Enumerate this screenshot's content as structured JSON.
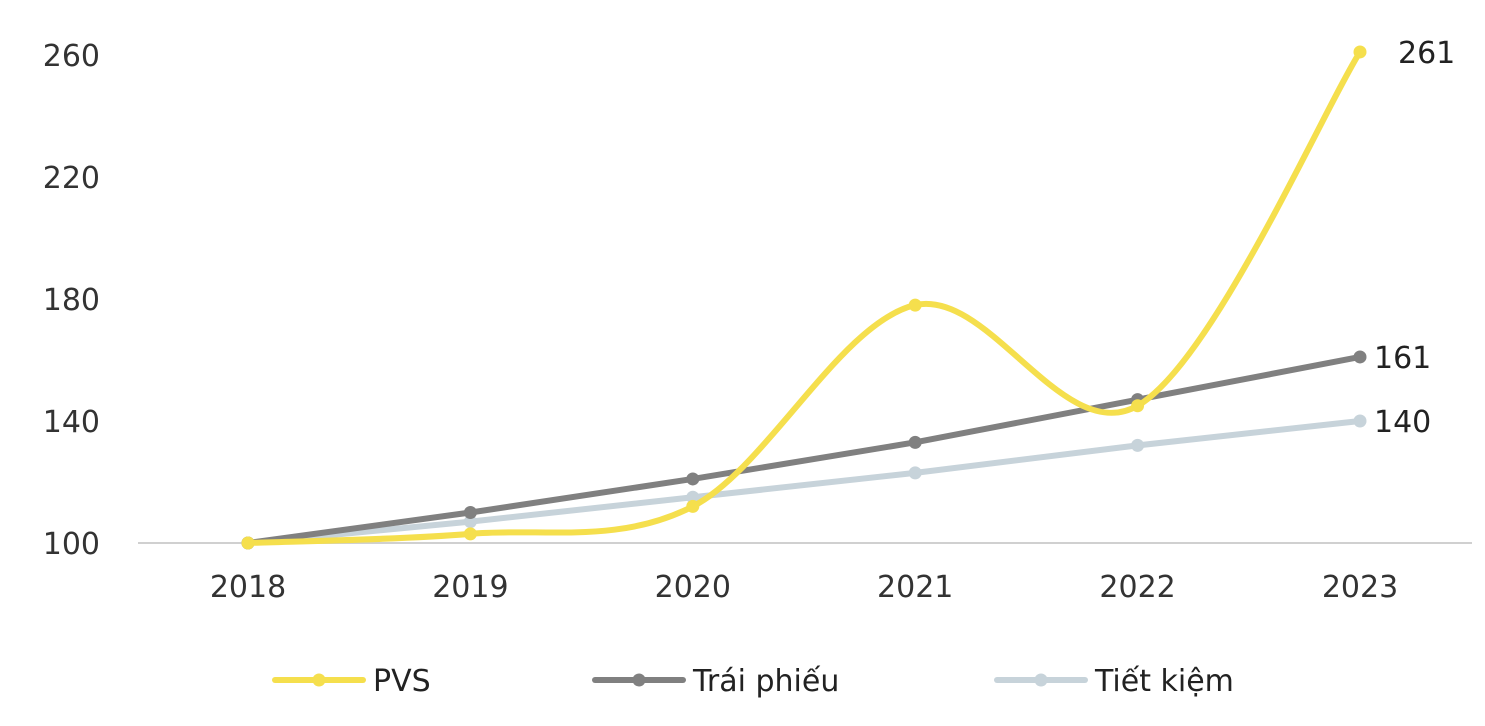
{
  "chart_data": {
    "type": "line",
    "title": "",
    "xlabel": "",
    "ylabel": "",
    "categories": [
      "2018",
      "2019",
      "2020",
      "2021",
      "2022",
      "2023"
    ],
    "ylim": [
      100,
      260
    ],
    "yticks": [
      100,
      140,
      180,
      220,
      260
    ],
    "grid": false,
    "legend": "bottom",
    "series": [
      {
        "name": "PVS",
        "values": [
          100,
          103,
          112,
          178,
          145,
          261
        ],
        "color": "#F5DF4D",
        "smooth": true,
        "end_label": "261"
      },
      {
        "name": "Trái phiếu",
        "values": [
          100,
          110,
          121,
          133,
          147,
          161
        ],
        "color": "#808080",
        "smooth": false,
        "end_label": "161"
      },
      {
        "name": "Tiết kiệm",
        "values": [
          100,
          107,
          115,
          123,
          132,
          140
        ],
        "color": "#C7D3DA",
        "smooth": false,
        "end_label": "140"
      }
    ],
    "axis_color": "#D0D0D0"
  }
}
